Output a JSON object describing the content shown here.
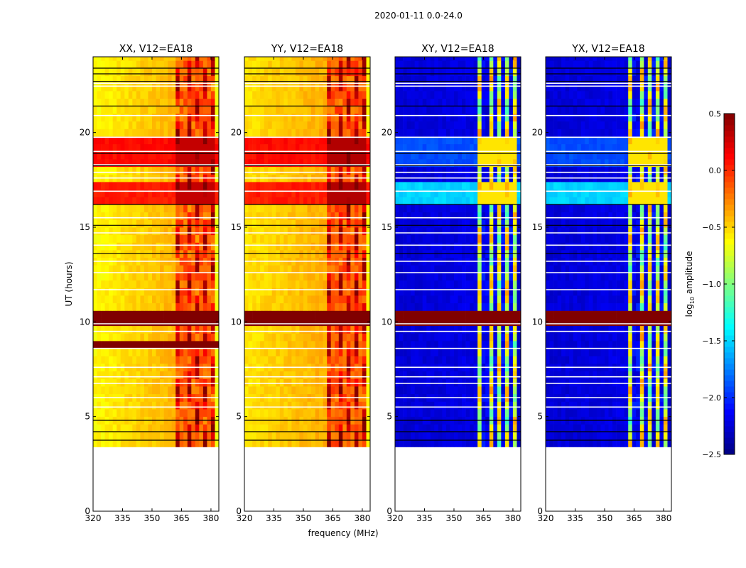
{
  "chart_data": {
    "type": "heatmap",
    "title": "2020-01-11 0.0-24.0",
    "xlabel": "frequency (MHz)",
    "ylabel": "UT (hours)",
    "xlim": [
      320,
      384
    ],
    "ylim": [
      0,
      24
    ],
    "xticks": [
      320,
      335,
      350,
      365,
      380
    ],
    "yticks": [
      0,
      5,
      10,
      15,
      20
    ],
    "data_start_hour": 3.4,
    "colormap": "jet",
    "colorbar": {
      "label_main": "log",
      "label_sub": "10",
      "label_rest": " amplitude",
      "range": [
        -2.5,
        0.5
      ],
      "ticks": [
        0.5,
        0.0,
        -0.5,
        -1.0,
        -1.5,
        -2.0,
        -2.5
      ],
      "tick_labels": [
        "0.5",
        "0.0",
        "−0.5",
        "−1.0",
        "−1.5",
        "−2.0",
        "−2.5"
      ]
    },
    "rfi_band_mhz": [
      362.5,
      381
    ],
    "rfi_gaps_mhz": [
      366,
      370.5,
      375,
      379
    ],
    "flagged_white_hours": [
      22.6,
      22.45,
      20.9,
      19.75,
      19.0,
      18.3,
      17.9,
      17.6,
      16.9,
      15.5,
      14.7,
      14.05,
      13.2,
      12.6,
      11.7,
      9.9,
      9.5,
      8.6,
      7.6,
      7.1,
      6.75,
      6.0,
      5.5
    ],
    "flagged_black_hours": [
      23.4,
      23.1,
      22.7,
      21.4,
      18.9,
      18.25,
      16.2,
      15.1,
      13.6,
      4.8,
      4.2,
      3.75
    ],
    "panels": [
      {
        "title": "XX, V12=EA18",
        "base_low": -0.62,
        "base_high": -0.4,
        "rfi_level": 0.1,
        "gap_level": -0.3,
        "bright_bands": [
          [
            16.2,
            17.5,
            0.05
          ],
          [
            18.3,
            19.8,
            0.1
          ]
        ],
        "saturated_bands": [
          [
            9.85,
            10.3
          ],
          [
            8.7,
            8.75
          ]
        ]
      },
      {
        "title": "YY, V12=EA18",
        "base_low": -0.55,
        "base_high": -0.38,
        "rfi_level": 0.15,
        "gap_level": -0.3,
        "bright_bands": [
          [
            16.2,
            17.5,
            0.05
          ],
          [
            18.3,
            19.8,
            0.1
          ]
        ],
        "saturated_bands": [
          [
            9.95,
            10.3
          ]
        ]
      },
      {
        "title": "XY, V12=EA18",
        "base_low": -2.25,
        "base_high": -2.2,
        "rfi_level": -0.75,
        "gap_level": -2.3,
        "bright_bands": [
          [
            16.2,
            17.5,
            -1.5
          ],
          [
            18.3,
            19.8,
            -1.9
          ]
        ],
        "saturated_bands": [
          [
            9.85,
            10.3
          ]
        ]
      },
      {
        "title": "YX, V12=EA18",
        "base_low": -2.25,
        "base_high": -2.2,
        "rfi_level": -0.75,
        "gap_level": -2.3,
        "bright_bands": [
          [
            16.2,
            17.5,
            -1.5
          ],
          [
            18.3,
            19.8,
            -1.9
          ]
        ],
        "saturated_bands": [
          [
            9.85,
            10.3
          ]
        ]
      }
    ]
  }
}
